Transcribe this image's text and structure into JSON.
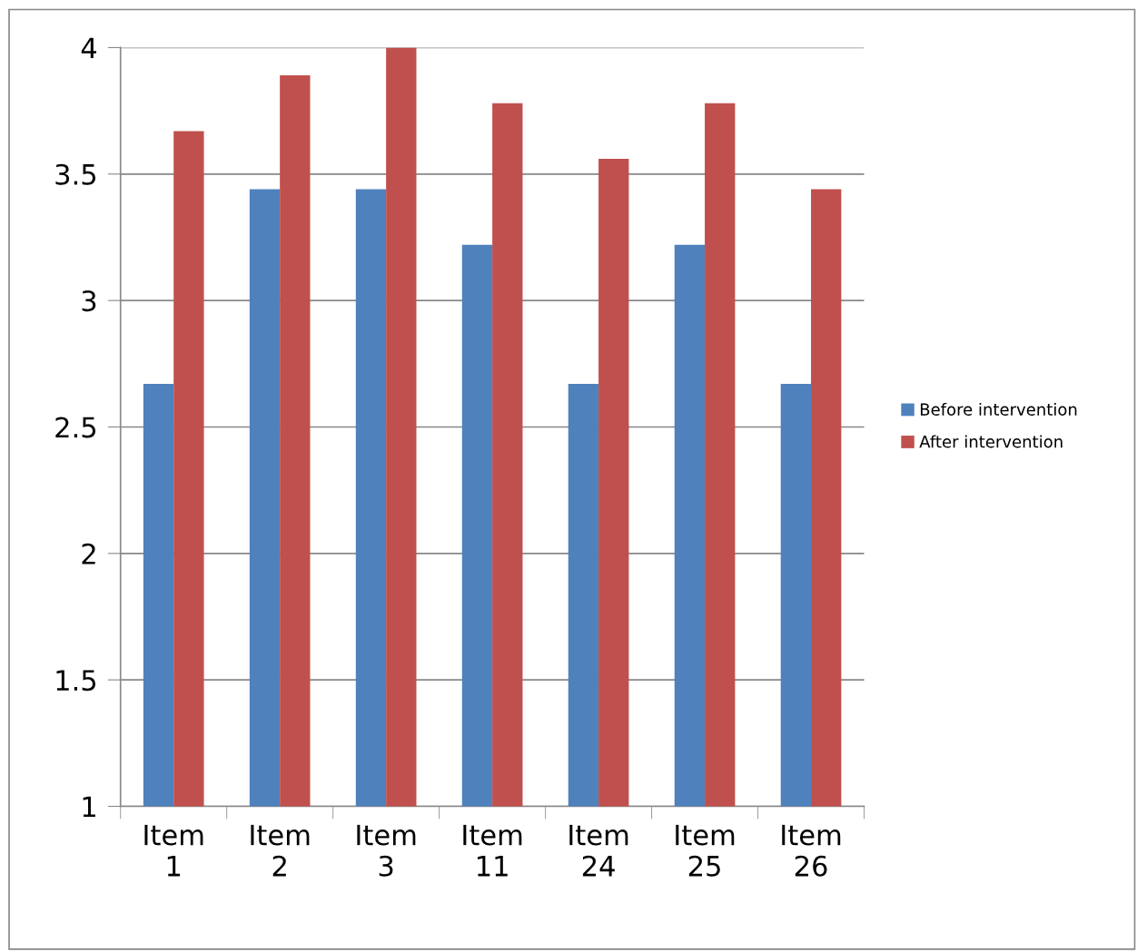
{
  "chart_data": {
    "type": "bar",
    "categories": [
      "Item 1",
      "Item 2",
      "Item 3",
      "Item 11",
      "Item 24",
      "Item 25",
      "Item 26"
    ],
    "series": [
      {
        "name": "Before intervention",
        "color": "#4f81bd",
        "values": [
          2.67,
          3.44,
          3.44,
          3.22,
          2.67,
          3.22,
          2.67
        ]
      },
      {
        "name": "After intervention",
        "color": "#c0504d",
        "values": [
          3.67,
          3.89,
          4.0,
          3.78,
          3.56,
          3.78,
          3.44
        ]
      }
    ],
    "ylim": [
      1,
      4
    ],
    "yticks": [
      1,
      1.5,
      2,
      2.5,
      3,
      3.5,
      4
    ],
    "grid": "y",
    "legend": "right"
  }
}
